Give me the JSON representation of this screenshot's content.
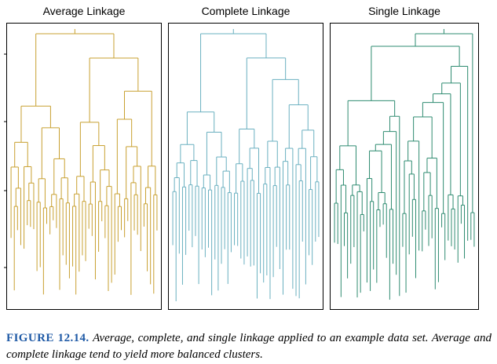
{
  "panels": [
    {
      "title": "Average Linkage",
      "color": "#c8a030"
    },
    {
      "title": "Complete Linkage",
      "color": "#6ab0c0"
    },
    {
      "title": "Single Linkage",
      "color": "#2e8b70"
    }
  ],
  "caption": {
    "label": "FIGURE 12.14.",
    "text": "Average, complete, and single linkage applied to an example data set. Average and complete linkage tend to yield more balanced clusters."
  }
}
